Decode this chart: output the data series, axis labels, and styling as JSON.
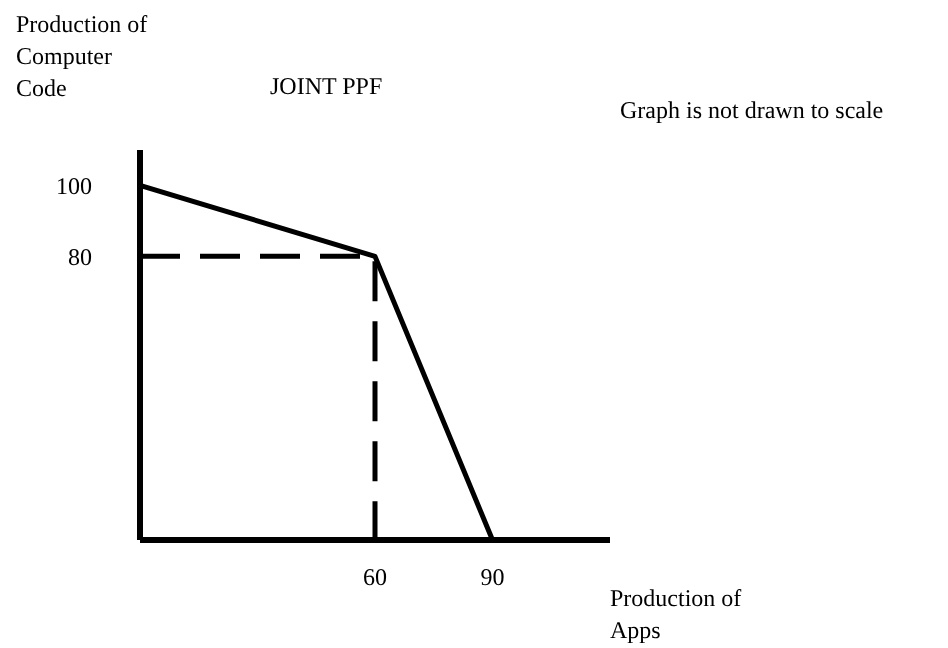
{
  "chart_data": {
    "type": "line",
    "title": "JOINT PPF",
    "ylabel": "Production of Computer Code",
    "xlabel": "Production of Apps",
    "annotations": [
      "Graph is not drawn to scale"
    ],
    "xlim": [
      0,
      120
    ],
    "xticks": [
      60,
      90
    ],
    "ylim": [
      0,
      110
    ],
    "yticks": [
      80,
      100
    ],
    "series": [
      {
        "color": "#000000",
        "x": [
          0,
          60,
          90
        ],
        "values": [
          100,
          80,
          0
        ],
        "line_style": "solid"
      },
      {
        "color": "#000000",
        "x": [
          0,
          60,
          60
        ],
        "values": [
          80,
          80,
          0
        ],
        "line_style": "dashed"
      }
    ]
  }
}
